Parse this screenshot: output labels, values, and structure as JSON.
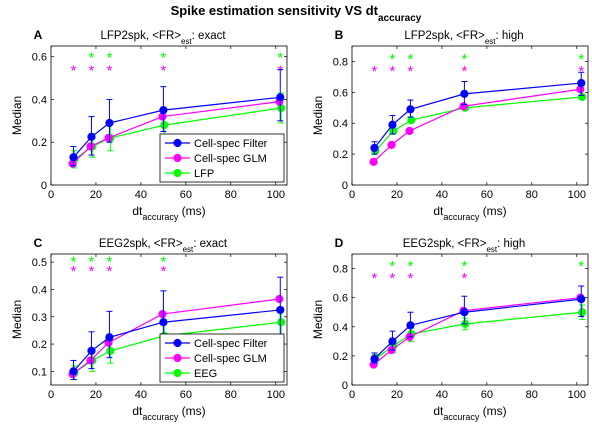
{
  "figure": {
    "title_main": "Spike estimation sensitivity VS dt",
    "title_sub": "accuracy"
  },
  "colors": {
    "filter": "#0000ff",
    "glm": "#ff00ff",
    "field": "#00ff00",
    "axes": "#000000"
  },
  "chart_data": [
    {
      "type": "line",
      "letter": "A",
      "title": {
        "pre": "LFP2spk, <FR>",
        "sub": "est",
        "post": ": exact"
      },
      "xlabel": {
        "main": "dt",
        "sub": "accuracy",
        "post": " (ms)"
      },
      "ylabel": "Median",
      "xlim": [
        0,
        105
      ],
      "ylim": [
        0,
        0.65
      ],
      "xticks": [
        0,
        20,
        40,
        60,
        80,
        100
      ],
      "yticks": [
        0,
        0.2,
        0.4,
        0.6
      ],
      "ytick_labels": [
        "0",
        "0.2",
        "0.4",
        "0.6"
      ],
      "x": [
        10,
        18,
        26,
        50,
        102
      ],
      "series": [
        {
          "name": "Cell-spec Filter",
          "color_key": "filter",
          "offset": 0,
          "values": [
            0.13,
            0.225,
            0.29,
            0.35,
            0.41
          ],
          "errors": [
            [
              0.09,
              0.18
            ],
            [
              0.14,
              0.32
            ],
            [
              0.2,
              0.4
            ],
            [
              0.25,
              0.46
            ],
            [
              0.3,
              0.54
            ]
          ]
        },
        {
          "name": "Cell-spec GLM",
          "color_key": "glm",
          "offset": -0.4,
          "values": [
            0.1,
            0.18,
            0.22,
            0.32,
            0.39
          ],
          "errors": null
        },
        {
          "name": "LFP",
          "color_key": "field",
          "offset": 0.4,
          "values": [
            0.12,
            0.18,
            0.22,
            0.28,
            0.36
          ],
          "errors": [
            [
              0.08,
              0.16
            ],
            [
              0.13,
              0.24
            ],
            [
              0.16,
              0.3
            ],
            [
              0.21,
              0.36
            ],
            [
              0.29,
              0.43
            ]
          ]
        }
      ],
      "significance": {
        "field_stars_at": [
          18,
          26,
          50,
          102
        ],
        "glm_stars_at": [
          10,
          18,
          26,
          50,
          102
        ],
        "field_row": 0.605,
        "glm_row": 0.545
      },
      "legend": {
        "show": true,
        "items": [
          "Cell-spec Filter",
          "Cell-spec GLM",
          "LFP"
        ]
      }
    },
    {
      "type": "line",
      "letter": "B",
      "title": {
        "pre": "LFP2spk, <FR>",
        "sub": "est",
        "post": ": high"
      },
      "xlabel": {
        "main": "dt",
        "sub": "accuracy",
        "post": " (ms)"
      },
      "ylabel": "Median",
      "xlim": [
        0,
        105
      ],
      "ylim": [
        0,
        0.9
      ],
      "xticks": [
        0,
        20,
        40,
        60,
        80,
        100
      ],
      "yticks": [
        0,
        0.2,
        0.4,
        0.6,
        0.8
      ],
      "ytick_labels": [
        "0",
        "0.2",
        "0.4",
        "0.6",
        "0.8"
      ],
      "x": [
        10,
        18,
        26,
        50,
        102
      ],
      "series": [
        {
          "name": "Cell-spec Filter",
          "color_key": "filter",
          "offset": 0,
          "values": [
            0.24,
            0.39,
            0.49,
            0.59,
            0.66
          ],
          "errors": [
            [
              0.2,
              0.28
            ],
            [
              0.33,
              0.45
            ],
            [
              0.44,
              0.55
            ],
            [
              0.52,
              0.67
            ],
            [
              0.58,
              0.73
            ]
          ]
        },
        {
          "name": "Cell-spec GLM",
          "color_key": "glm",
          "offset": -0.4,
          "values": [
            0.15,
            0.26,
            0.35,
            0.51,
            0.62
          ],
          "errors": null
        },
        {
          "name": "LFP",
          "color_key": "field",
          "offset": 0.4,
          "values": [
            0.22,
            0.35,
            0.42,
            0.5,
            0.57
          ],
          "errors": null
        }
      ],
      "significance": {
        "field_stars_at": [
          18,
          26,
          50,
          102
        ],
        "glm_stars_at": [
          10,
          18,
          26,
          50,
          102
        ],
        "field_row": 0.83,
        "glm_row": 0.75
      },
      "legend": {
        "show": false,
        "items": []
      }
    },
    {
      "type": "line",
      "letter": "C",
      "title": {
        "pre": "EEG2spk, <FR>",
        "sub": "est",
        "post": ": exact"
      },
      "xlabel": {
        "main": "dt",
        "sub": "accuracy",
        "post": " (ms)"
      },
      "ylabel": "Median",
      "xlim": [
        0,
        105
      ],
      "ylim": [
        0.05,
        0.53
      ],
      "xticks": [
        0,
        20,
        40,
        60,
        80,
        100
      ],
      "yticks": [
        0.1,
        0.2,
        0.3,
        0.4,
        0.5
      ],
      "ytick_labels": [
        "0.1",
        "0.2",
        "0.3",
        "0.4",
        "0.5"
      ],
      "x": [
        10,
        18,
        26,
        50,
        102
      ],
      "series": [
        {
          "name": "Cell-spec Filter",
          "color_key": "filter",
          "offset": 0,
          "values": [
            0.1,
            0.175,
            0.225,
            0.28,
            0.325
          ],
          "errors": [
            [
              0.07,
              0.14
            ],
            [
              0.11,
              0.245
            ],
            [
              0.15,
              0.32
            ],
            [
              0.17,
              0.395
            ],
            [
              0.2,
              0.445
            ]
          ]
        },
        {
          "name": "Cell-spec GLM",
          "color_key": "glm",
          "offset": -0.4,
          "values": [
            0.09,
            0.14,
            0.205,
            0.31,
            0.365
          ],
          "errors": null
        },
        {
          "name": "EEG",
          "color_key": "field",
          "offset": 0.4,
          "values": [
            0.095,
            0.14,
            0.175,
            0.23,
            0.28
          ],
          "errors": [
            [
              0.07,
              0.12
            ],
            [
              0.1,
              0.185
            ],
            [
              0.13,
              0.225
            ],
            [
              0.18,
              0.29
            ],
            [
              0.22,
              0.33
            ]
          ]
        }
      ],
      "significance": {
        "field_stars_at": [
          10,
          18,
          26,
          50
        ],
        "glm_stars_at": [
          10,
          18,
          26,
          50
        ],
        "field_row": 0.51,
        "glm_row": 0.475
      },
      "legend": {
        "show": true,
        "items": [
          "Cell-spec Filter",
          "Cell-spec GLM",
          "EEG"
        ]
      }
    },
    {
      "type": "line",
      "letter": "D",
      "title": {
        "pre": "EEG2spk, <FR>",
        "sub": "est",
        "post": ": high"
      },
      "xlabel": {
        "main": "dt",
        "sub": "accuracy",
        "post": " (ms)"
      },
      "ylabel": "Median",
      "xlim": [
        0,
        105
      ],
      "ylim": [
        0,
        0.9
      ],
      "xticks": [
        0,
        20,
        40,
        60,
        80,
        100
      ],
      "yticks": [
        0,
        0.2,
        0.4,
        0.6,
        0.8
      ],
      "ytick_labels": [
        "0",
        "0.2",
        "0.4",
        "0.6",
        "0.8"
      ],
      "x": [
        10,
        18,
        26,
        50,
        102
      ],
      "series": [
        {
          "name": "Cell-spec Filter",
          "color_key": "filter",
          "offset": 0,
          "values": [
            0.18,
            0.3,
            0.41,
            0.5,
            0.59
          ],
          "errors": [
            [
              0.15,
              0.22
            ],
            [
              0.24,
              0.37
            ],
            [
              0.33,
              0.5
            ],
            [
              0.42,
              0.61
            ],
            [
              0.47,
              0.68
            ]
          ]
        },
        {
          "name": "Cell-spec GLM",
          "color_key": "glm",
          "offset": -0.4,
          "values": [
            0.14,
            0.24,
            0.33,
            0.51,
            0.6
          ],
          "errors": null
        },
        {
          "name": "EEG",
          "color_key": "field",
          "offset": 0.4,
          "values": [
            0.18,
            0.27,
            0.35,
            0.42,
            0.5
          ],
          "errors": [
            [
              0.15,
              0.21
            ],
            [
              0.22,
              0.31
            ],
            [
              0.3,
              0.39
            ],
            [
              0.38,
              0.46
            ],
            [
              0.45,
              0.55
            ]
          ]
        }
      ],
      "significance": {
        "field_stars_at": [
          18,
          26,
          50,
          102
        ],
        "glm_stars_at": [
          10,
          18,
          26,
          50
        ],
        "field_row": 0.83,
        "glm_row": 0.75
      },
      "legend": {
        "show": false,
        "items": []
      }
    }
  ]
}
